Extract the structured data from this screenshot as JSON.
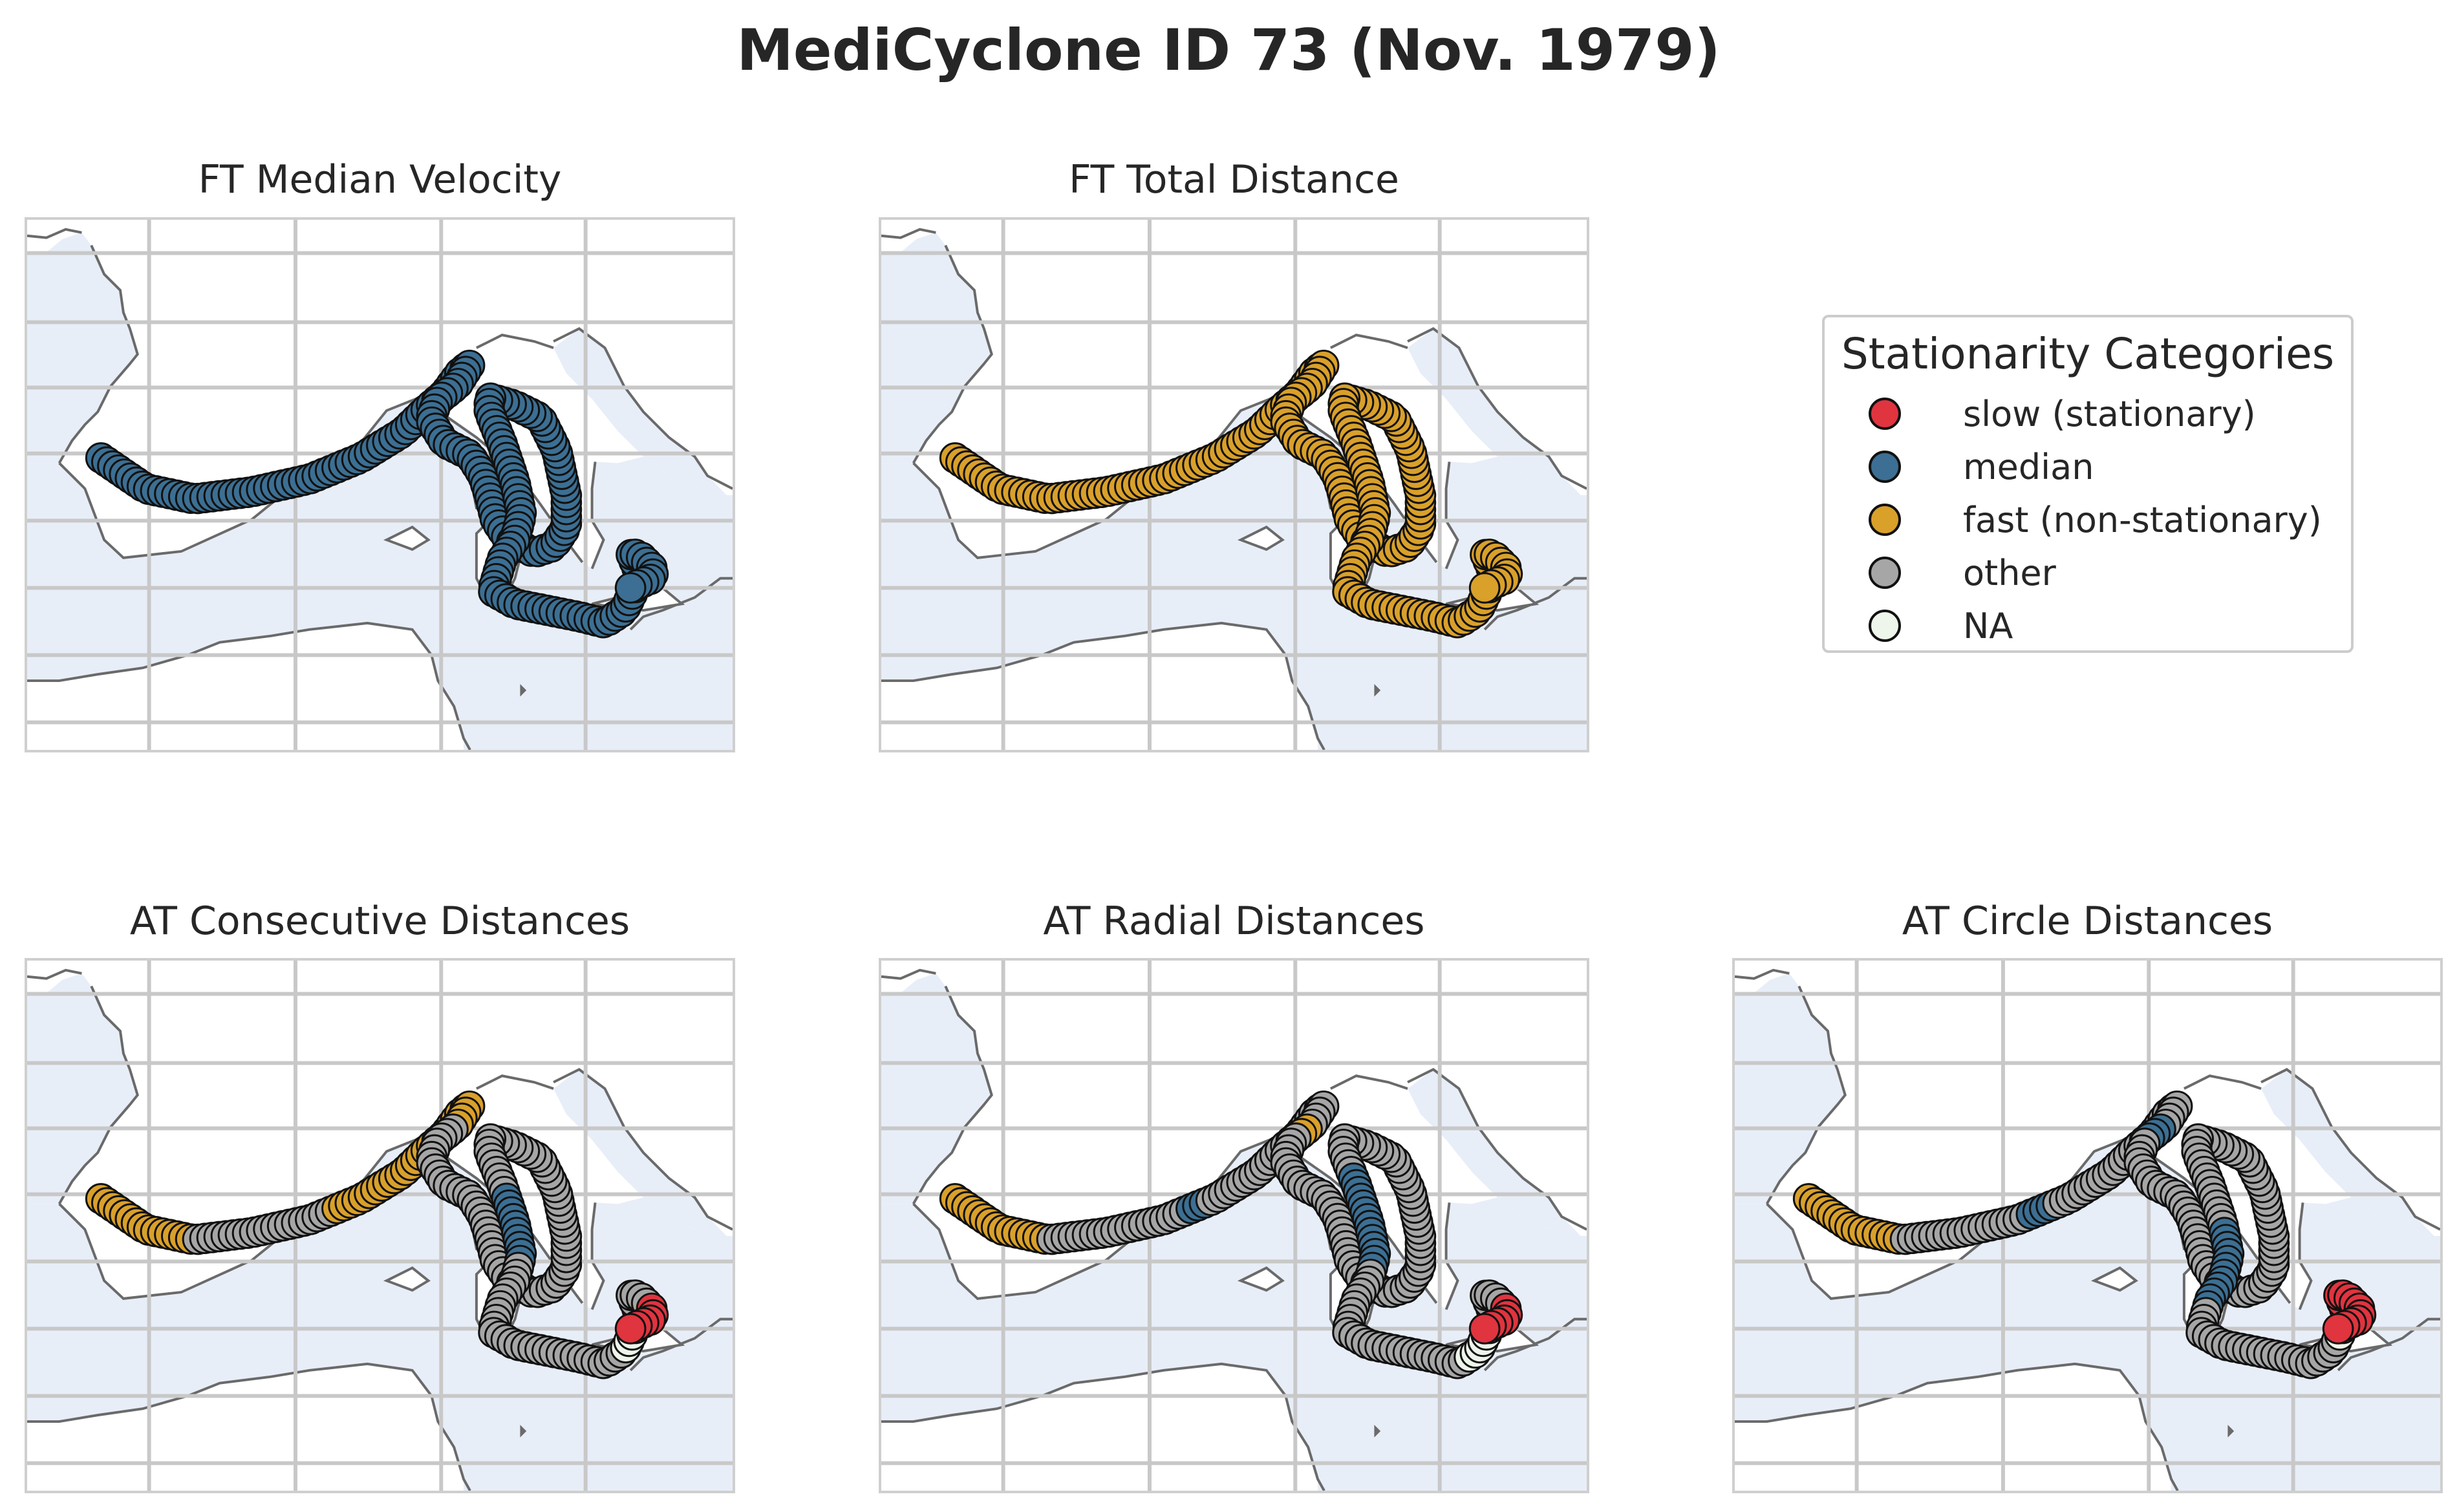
{
  "title": "MediCyclone ID 73 (Nov. 1979)",
  "colors": {
    "slow": "#e0343f",
    "median": "#3c6f93",
    "fast": "#d9a02a",
    "other": "#a6a6a6",
    "na": "#eef5ea",
    "sea": "#e8eef8",
    "coast": "#6a6a6a",
    "grid": "#c8c8c8"
  },
  "legend": {
    "title": "Stationarity Categories",
    "items": [
      {
        "key": "slow",
        "label": "slow (stationary)"
      },
      {
        "key": "median",
        "label": "median"
      },
      {
        "key": "fast",
        "label": "fast (non-stationary)"
      },
      {
        "key": "other",
        "label": "other"
      },
      {
        "key": "na",
        "label": "NA"
      }
    ]
  },
  "chart_data": [
    {
      "type": "scatter",
      "title": "FT Median Velocity",
      "grid": true,
      "legend": "shared panel at top-right",
      "track_category_runs": [
        {
          "category": "median",
          "count": 190
        }
      ]
    },
    {
      "type": "scatter",
      "title": "FT Total Distance",
      "grid": true,
      "track_category_runs": [
        {
          "category": "fast",
          "count": 190
        }
      ]
    },
    {
      "type": "scatter",
      "title": "AT Consecutive Distances",
      "grid": true,
      "track_category_runs": [
        {
          "category": "fast",
          "count": 15
        },
        {
          "category": "other",
          "count": 20
        },
        {
          "category": "fast",
          "count": 28
        },
        {
          "category": "other",
          "count": 69
        },
        {
          "category": "median",
          "count": 10
        },
        {
          "category": "other",
          "count": 30
        },
        {
          "category": "na",
          "count": 6
        },
        {
          "category": "other",
          "count": 6
        },
        {
          "category": "slow",
          "count": 6
        }
      ]
    },
    {
      "type": "scatter",
      "title": "AT Radial Distances",
      "grid": true,
      "track_category_runs": [
        {
          "category": "fast",
          "count": 15
        },
        {
          "category": "other",
          "count": 20
        },
        {
          "category": "median",
          "count": 3
        },
        {
          "category": "other",
          "count": 25
        },
        {
          "category": "fast",
          "count": 2
        },
        {
          "category": "other",
          "count": 64
        },
        {
          "category": "median",
          "count": 14
        },
        {
          "category": "other",
          "count": 27
        },
        {
          "category": "na",
          "count": 5
        },
        {
          "category": "other",
          "count": 9
        },
        {
          "category": "slow",
          "count": 6
        }
      ]
    },
    {
      "type": "scatter",
      "title": "AT Circle Distances",
      "grid": true,
      "track_category_runs": [
        {
          "category": "fast",
          "count": 15
        },
        {
          "category": "other",
          "count": 18
        },
        {
          "category": "median",
          "count": 4
        },
        {
          "category": "other",
          "count": 26
        },
        {
          "category": "median",
          "count": 3
        },
        {
          "category": "other",
          "count": 71
        },
        {
          "category": "median",
          "count": 12
        },
        {
          "category": "other",
          "count": 25
        },
        {
          "category": "na",
          "count": 4
        },
        {
          "category": "slow",
          "count": 12
        }
      ]
    }
  ]
}
